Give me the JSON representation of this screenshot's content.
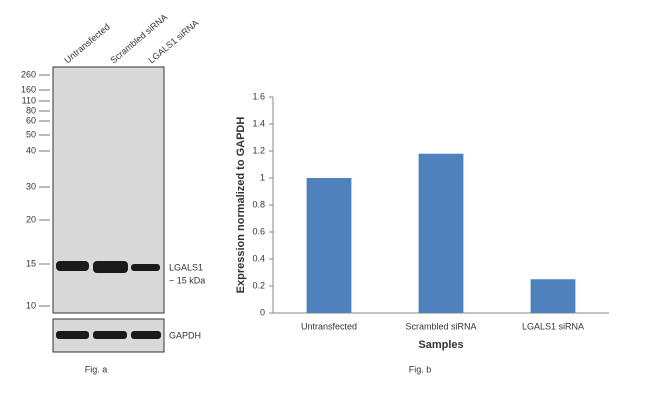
{
  "blot": {
    "lanes": [
      "Untransfected",
      "Scrambled siRNA",
      "LGALS1 siRNA"
    ],
    "ladder": [
      "260",
      "160",
      "110",
      "80",
      "60",
      "50",
      "40",
      "30",
      "20",
      "15",
      "10"
    ],
    "band_label": "LGALS1",
    "band_size": "~ 15 kDa",
    "control_label": "GAPDH",
    "caption": "Fig. a"
  },
  "chart_data": {
    "type": "bar",
    "caption": "Fig. b",
    "categories": [
      "Untransfected",
      "Scrambled siRNA",
      "LGALS1 siRNA"
    ],
    "values": [
      1.0,
      1.18,
      0.25
    ],
    "color": "#4f81bd",
    "ylim": [
      0,
      1.6
    ],
    "yticks": [
      0,
      0.2,
      0.4,
      0.6,
      0.8,
      1,
      1.2,
      1.4,
      1.6
    ],
    "xlabel": "Samples",
    "ylabel": "Expression normalized to GAPDH",
    "grid": false
  }
}
